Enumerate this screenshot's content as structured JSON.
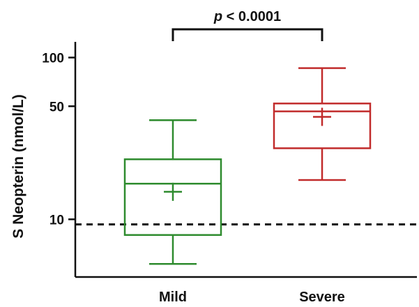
{
  "chart_data": {
    "type": "boxplot",
    "ylabel": "S Neopterin (nmol/L)",
    "yscale": "log",
    "ylim": [
      4.4,
      125
    ],
    "yticks": [
      10,
      50,
      100
    ],
    "yticklabels": [
      "10",
      "50",
      "100"
    ],
    "categories": [
      "Mild",
      "Severe"
    ],
    "series": [
      {
        "whisker_low": 5.3,
        "q1": 8.0,
        "median": 16.6,
        "q3": 23.5,
        "whisker_high": 41,
        "mean": 14.8,
        "color": "#2e8b2e"
      },
      {
        "whisker_low": 17.5,
        "q1": 27.5,
        "median": 46.5,
        "q3": 52,
        "whisker_high": 86,
        "mean": 43,
        "color": "#c12b2b"
      }
    ],
    "reference_line": {
      "y": 9.3,
      "style": "dashed",
      "color": "#111111"
    },
    "annotation": {
      "text_italic": "p",
      "text_rest": " < 0.0001",
      "between": [
        "Mild",
        "Severe"
      ]
    }
  }
}
